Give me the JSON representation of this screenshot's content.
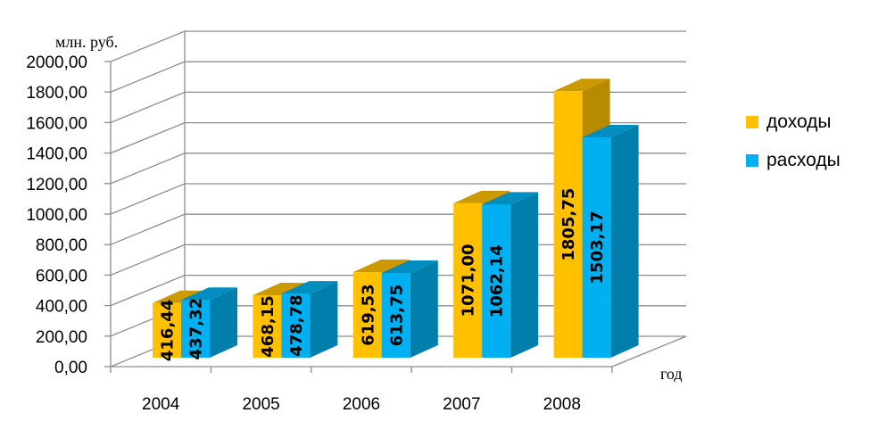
{
  "chart_data": {
    "type": "bar",
    "ylabel": "млн. руб.",
    "xlabel": "год",
    "categories": [
      "2004",
      "2005",
      "2006",
      "2007",
      "2008"
    ],
    "y_tick_labels": [
      "0,00",
      "200,00",
      "400,00",
      "600,00",
      "800,00",
      "1000,00",
      "1200,00",
      "1400,00",
      "1600,00",
      "1800,00",
      "2000,00"
    ],
    "ylim": [
      0,
      2000
    ],
    "grid": true,
    "legend_position": "right",
    "series": [
      {
        "name": "доходы",
        "color": "#FFC000",
        "values": [
          416.44,
          468.15,
          619.53,
          1071.0,
          1805.75
        ],
        "labels": [
          "416,44",
          "468,15",
          "619,53",
          "1071,00",
          "1805,75"
        ]
      },
      {
        "name": "расходы",
        "color": "#00B0F0",
        "values": [
          437.32,
          478.78,
          613.75,
          1062.14,
          1503.17
        ],
        "labels": [
          "437,32",
          "478,78",
          "613,75",
          "1062,14",
          "1503,17"
        ]
      }
    ]
  }
}
